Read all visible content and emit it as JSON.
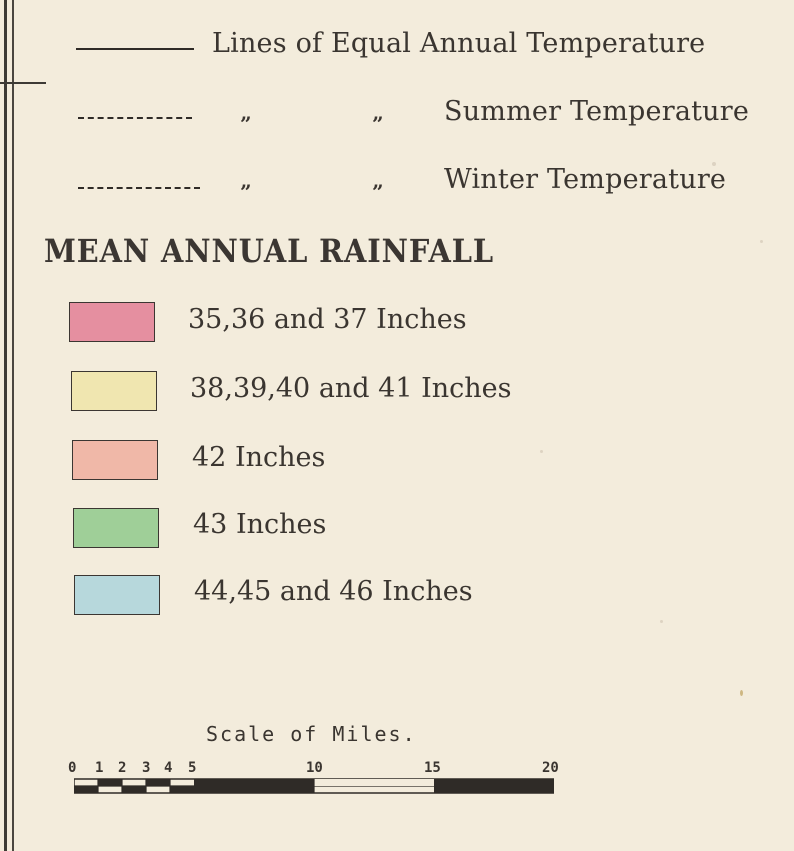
{
  "temperature_legend": {
    "annual_label": "Lines of Equal Annual Temperature",
    "summer_ditto_1": "”",
    "summer_ditto_2": "”",
    "summer_label": "Summer Temperature",
    "winter_ditto_1": "”",
    "winter_ditto_2": "”",
    "winter_label": "Winter Temperature"
  },
  "rainfall": {
    "title": "MEAN ANNUAL RAINFALL",
    "items": [
      {
        "label": "35,36 and 37 Inches",
        "color": "#e58fa0"
      },
      {
        "label": "38,39,40 and 41 Inches",
        "color": "#f0e6b0"
      },
      {
        "label": "42 Inches",
        "color": "#f0b8a8"
      },
      {
        "label": "43 Inches",
        "color": "#9fcf98"
      },
      {
        "label": "44,45 and 46 Inches",
        "color": "#b7d8dc"
      }
    ]
  },
  "scale": {
    "title": "Scale of Miles.",
    "ticks": [
      "0",
      "1",
      "2",
      "3",
      "4",
      "5",
      "10",
      "15",
      "20"
    ]
  }
}
